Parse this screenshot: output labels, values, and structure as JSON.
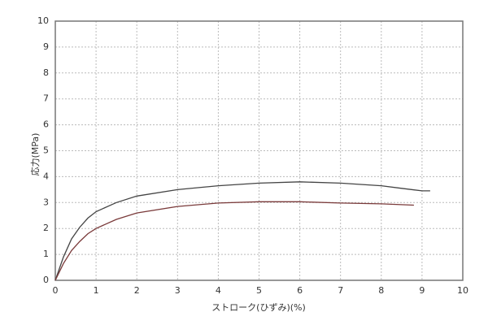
{
  "chart_data": {
    "type": "line",
    "x_label": "ストローク(ひずみ)(%)",
    "y_label": "応力(MPa)",
    "xlim": [
      0,
      10
    ],
    "xticks": [
      0,
      1,
      2,
      3,
      4,
      5,
      6,
      7,
      8,
      9,
      10
    ],
    "ylim": [
      0,
      10
    ],
    "yticks": [
      0,
      1,
      2,
      3,
      4,
      5,
      6,
      7,
      8,
      9,
      10
    ],
    "grid": true,
    "series": [
      {
        "color": "#444444",
        "x": [
          0,
          0.2,
          0.4,
          0.6,
          0.8,
          1,
          1.5,
          2,
          3,
          4,
          5,
          6,
          7,
          8,
          8.5,
          9,
          9.2
        ],
        "values": [
          0,
          0.9,
          1.6,
          2.05,
          2.4,
          2.65,
          3.0,
          3.25,
          3.5,
          3.65,
          3.75,
          3.8,
          3.75,
          3.65,
          3.55,
          3.45,
          3.45
        ]
      },
      {
        "color": "#7a3a3a",
        "x": [
          0,
          0.2,
          0.4,
          0.6,
          0.8,
          1,
          1.5,
          2,
          3,
          4,
          5,
          6,
          7,
          8,
          8.8
        ],
        "values": [
          0,
          0.65,
          1.15,
          1.5,
          1.8,
          2.0,
          2.35,
          2.6,
          2.85,
          2.98,
          3.03,
          3.03,
          2.98,
          2.95,
          2.9
        ]
      }
    ]
  }
}
